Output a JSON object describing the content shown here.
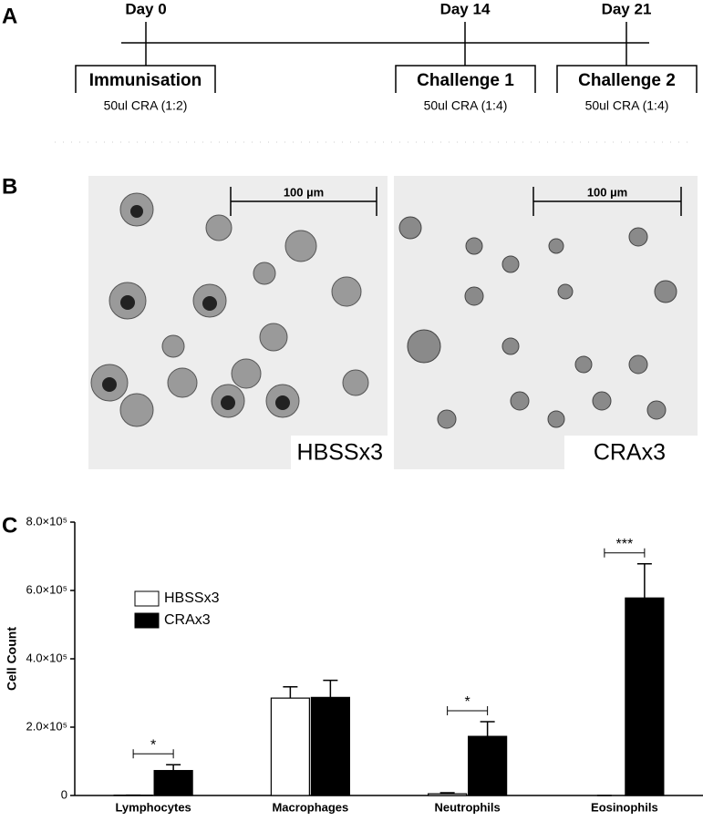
{
  "panel_labels": [
    "A",
    "B",
    "C"
  ],
  "timeline": {
    "events": [
      {
        "day": "Day 0",
        "label": "Immunisation",
        "dose": "50ul CRA (1:2)"
      },
      {
        "day": "Day 14",
        "label": "Challenge 1",
        "dose": "50ul CRA (1:4)"
      },
      {
        "day": "Day 21",
        "label": "Challenge 2",
        "dose": "50ul CRA (1:4)"
      }
    ]
  },
  "images": [
    {
      "scale": "100 µm",
      "label": "HBSSx3"
    },
    {
      "scale": "100 µm",
      "label": "CRAx3"
    }
  ],
  "chart_data": {
    "type": "bar",
    "y_label": "Cell Count",
    "categories": [
      "Lymphocytes",
      "Macrophages",
      "Neutrophils",
      "Eosinophils"
    ],
    "series": [
      {
        "name": "HBSSx3",
        "color": "#ffffff",
        "values": [
          1000,
          285000,
          5000,
          0
        ],
        "errors": [
          0,
          33000,
          3000,
          0
        ]
      },
      {
        "name": "CRAx3",
        "color": "#000000",
        "values": [
          73000,
          287000,
          173000,
          578000
        ],
        "errors": [
          17000,
          50000,
          43000,
          100000
        ]
      }
    ],
    "significance": [
      "*",
      null,
      "*",
      "***"
    ],
    "ylim": [
      0,
      800000
    ],
    "yticks": [
      0,
      {
        "value": 200000,
        "label": "2.0×10⁵"
      },
      {
        "value": 400000,
        "label": "4.0×10⁵"
      },
      {
        "value": 600000,
        "label": "6.0×10⁵"
      },
      {
        "value": 800000,
        "label": "8.0×10⁵"
      }
    ]
  }
}
